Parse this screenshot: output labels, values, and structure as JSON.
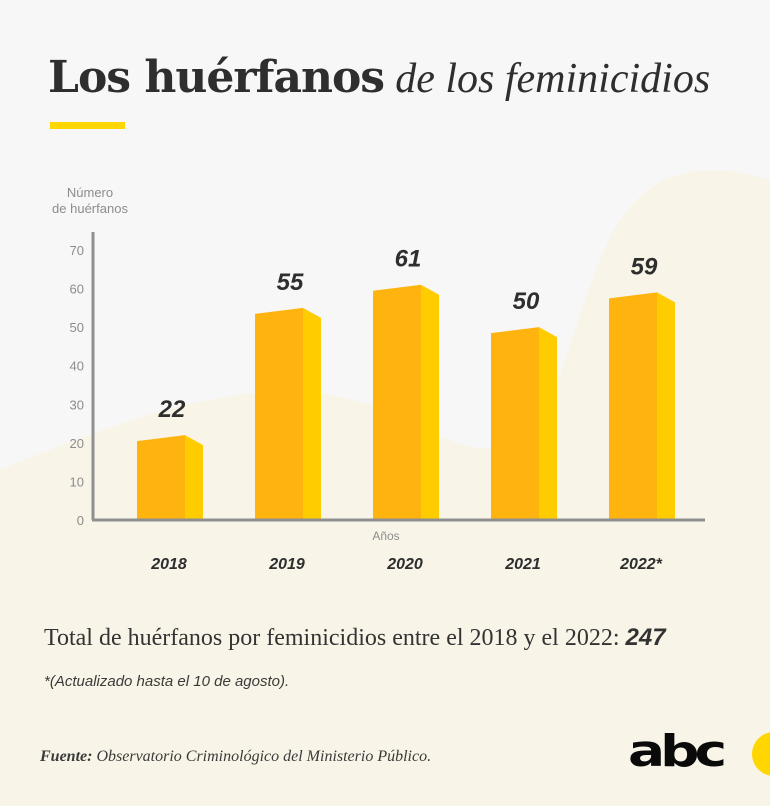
{
  "header": {
    "title_bold": "Los huérfanos",
    "title_italic": "de los feminicidios"
  },
  "colors": {
    "accent_yellow": "#ffd600",
    "bar_front": "#ffb30f",
    "bar_side": "#ffcc00",
    "text_dark": "#2e2e2e",
    "axis_gray": "#8f8f8f",
    "background_light": "#f7f7f7",
    "background_cream": "#f8f5e8"
  },
  "chart_data": {
    "type": "bar",
    "title": "Los huérfanos de los feminicidios",
    "xlabel": "Años",
    "ylabel": "Número de huérfanos",
    "ylabel_lines": [
      "Número",
      "de huérfanos"
    ],
    "categories": [
      "2018",
      "2019",
      "2020",
      "2021",
      "2022*"
    ],
    "values": [
      22,
      55,
      61,
      50,
      59
    ],
    "data_labels": [
      "22",
      "55",
      "61",
      "50",
      "59"
    ],
    "ylim": [
      0,
      70
    ],
    "yticks": [
      0,
      10,
      20,
      30,
      40,
      50,
      60,
      70
    ],
    "grid": false,
    "legend": "none",
    "style": "3d-bar"
  },
  "summary": {
    "total_text": "Total de huérfanos por feminicidios entre el 2018 y el 2022: ",
    "total_value": "247",
    "note": "*(Actualizado hasta el 10  de agosto)."
  },
  "footer": {
    "source_label": "Fuente:",
    "source_text": " Observatorio Criminológico del Ministerio Público.",
    "logo_text": "abc"
  }
}
